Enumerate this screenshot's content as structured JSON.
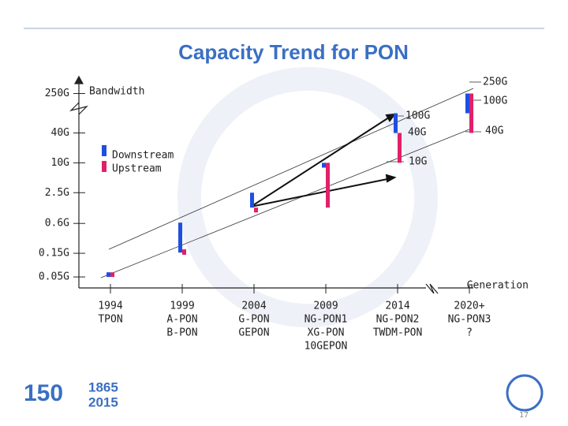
{
  "chart_data": {
    "type": "range-bar",
    "title": "Capacity Trend for PON",
    "y_label": "Bandwidth",
    "x_label": "Generation",
    "log_scale": true,
    "categories": [
      [
        "1994",
        "TPON"
      ],
      [
        "1999",
        "A-PON",
        "B-PON"
      ],
      [
        "2004",
        "G-PON",
        "GEPON"
      ],
      [
        "2009",
        "NG-PON1",
        "XG-PON",
        "10GEPON"
      ],
      [
        "2014",
        "NG-PON2",
        "TWDM-PON"
      ],
      [
        "2020+",
        "NG-PON3",
        "?"
      ]
    ],
    "series": [
      {
        "name": "Downstream",
        "color": "#1f4fe0",
        "low": [
          0.05,
          0.155,
          1.25,
          8,
          40,
          100
        ],
        "high": [
          0.062,
          0.622,
          2.5,
          10,
          100,
          250
        ]
      },
      {
        "name": "Upstream",
        "color": "#e0206a",
        "low": [
          0.05,
          0.14,
          1.0,
          1.25,
          10,
          40
        ],
        "high": [
          0.062,
          0.18,
          1.25,
          10,
          40,
          250
        ]
      }
    ],
    "ylim": [
      0.03,
      550
    ],
    "yticks": [
      {
        "value": 250,
        "label": "250G"
      },
      {
        "value": 40,
        "label": "40G"
      },
      {
        "value": 10,
        "label": "10G"
      },
      {
        "value": 2.5,
        "label": "2.5G"
      },
      {
        "value": 0.6,
        "label": "0.6G"
      },
      {
        "value": 0.15,
        "label": "0.15G"
      },
      {
        "value": 0.05,
        "label": "0.05G"
      }
    ],
    "annotations": [
      "250G",
      "100G",
      "40G",
      "100G",
      "40G",
      "10G"
    ]
  },
  "footer": {
    "logo_number": "150",
    "years": [
      "1865",
      "2015"
    ],
    "page": "17"
  }
}
